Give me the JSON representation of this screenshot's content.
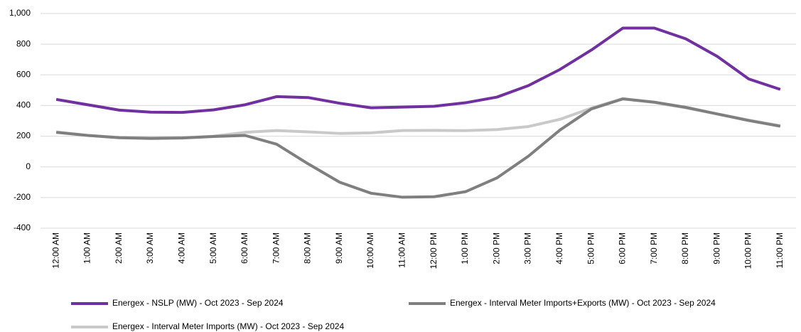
{
  "chart_data": {
    "type": "line",
    "categories": [
      "12:00 AM",
      "1:00 AM",
      "2:00 AM",
      "3:00 AM",
      "4:00 AM",
      "5:00 AM",
      "6:00 AM",
      "7:00 AM",
      "8:00 AM",
      "9:00 AM",
      "10:00 AM",
      "11:00 AM",
      "12:00 PM",
      "1:00 PM",
      "2:00 PM",
      "3:00 PM",
      "4:00 PM",
      "5:00 PM",
      "6:00 PM",
      "7:00 PM",
      "8:00 PM",
      "9:00 PM",
      "10:00 PM",
      "11:00 PM"
    ],
    "series": [
      {
        "name": "Energex - NSLP (MW) - Oct 2023 - Sep 2024",
        "color": "#7030a0",
        "values": [
          440,
          405,
          370,
          357,
          355,
          372,
          405,
          458,
          452,
          415,
          385,
          390,
          395,
          418,
          455,
          530,
          635,
          762,
          905,
          905,
          835,
          720,
          573,
          505
        ]
      },
      {
        "name": "Energex - Interval Meter Imports+Exports (MW) - Oct 2023 - Sep 2024",
        "color": "#7f7f7f",
        "values": [
          225,
          205,
          190,
          185,
          188,
          198,
          205,
          148,
          20,
          -100,
          -172,
          -198,
          -195,
          -162,
          -72,
          70,
          240,
          378,
          443,
          422,
          388,
          345,
          302,
          265
        ]
      },
      {
        "name": "Energex - Interval Meter Imports (MW) - Oct 2023 - Sep 2024",
        "color": "#c9c9c9",
        "values": [
          228,
          205,
          192,
          188,
          190,
          200,
          225,
          237,
          228,
          218,
          222,
          237,
          238,
          236,
          243,
          263,
          310,
          383,
          445,
          420,
          385,
          345,
          305,
          268
        ]
      }
    ],
    "ylim": [
      -400,
      1000
    ],
    "yticks": [
      -400,
      -200,
      0,
      200,
      400,
      600,
      800,
      {
        "value": 1000,
        "label": "1,000"
      }
    ],
    "grid": true,
    "legend": "bottom"
  }
}
